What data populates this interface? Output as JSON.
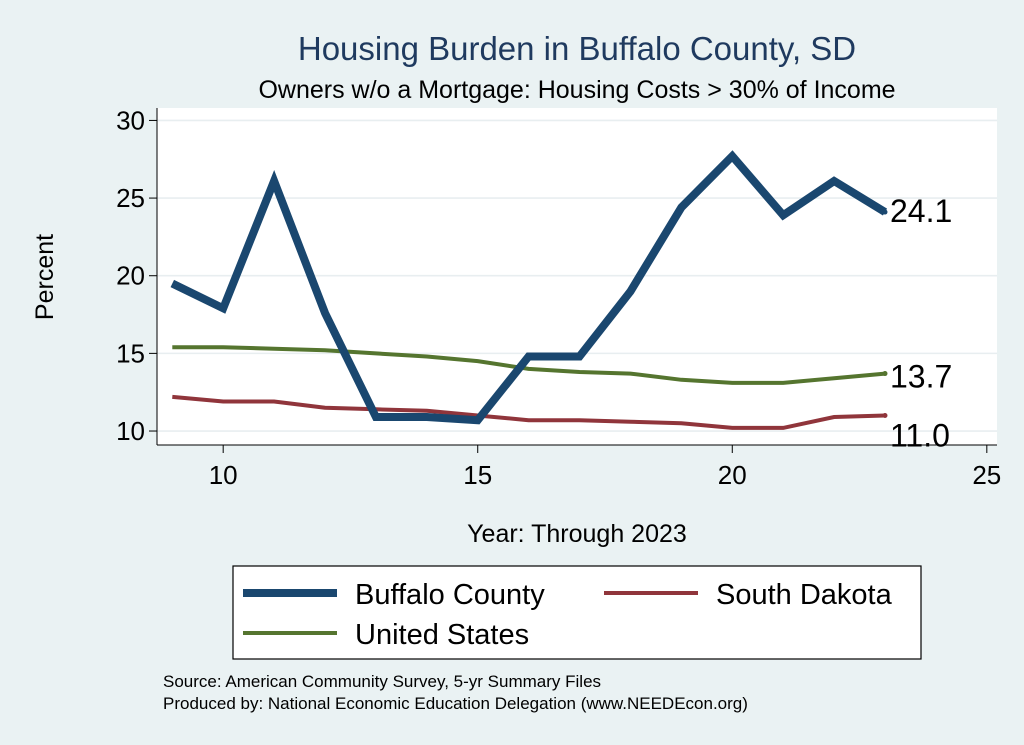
{
  "chart_data": {
    "type": "line",
    "title": "Housing Burden in Buffalo County, SD",
    "subtitle": "Owners w/o a Mortgage: Housing Costs > 30% of Income",
    "xlabel": "Year: Through 2023",
    "ylabel": "Percent",
    "xlim": [
      8.7,
      25.2
    ],
    "ylim": [
      9.1,
      30.8
    ],
    "xticks": [
      10,
      15,
      20,
      25
    ],
    "yticks": [
      10,
      15,
      20,
      25,
      30
    ],
    "grid": true,
    "legend_position": "bottom",
    "series": [
      {
        "name": "Buffalo County",
        "color": "#1a476f",
        "x": [
          9,
          10,
          11,
          12,
          13,
          14,
          15,
          16,
          17,
          18,
          19,
          20,
          21,
          22,
          23
        ],
        "values": [
          19.5,
          17.9,
          26.1,
          17.6,
          10.9,
          10.9,
          10.7,
          14.8,
          14.8,
          19.0,
          24.4,
          27.7,
          23.9,
          26.1,
          24.1
        ],
        "end_label": "24.1"
      },
      {
        "name": "South Dakota",
        "color": "#90353b",
        "x": [
          9,
          10,
          11,
          12,
          13,
          14,
          15,
          16,
          17,
          18,
          19,
          20,
          21,
          22,
          23
        ],
        "values": [
          12.2,
          11.9,
          11.9,
          11.5,
          11.4,
          11.3,
          11.0,
          10.7,
          10.7,
          10.6,
          10.5,
          10.2,
          10.2,
          10.9,
          11.0
        ],
        "end_label": "11.0"
      },
      {
        "name": "United States",
        "color": "#55752f",
        "x": [
          9,
          10,
          11,
          12,
          13,
          14,
          15,
          16,
          17,
          18,
          19,
          20,
          21,
          22,
          23
        ],
        "values": [
          15.4,
          15.4,
          15.3,
          15.2,
          15.0,
          14.8,
          14.5,
          14.0,
          13.8,
          13.7,
          13.3,
          13.1,
          13.1,
          13.4,
          13.7
        ],
        "end_label": "13.7"
      }
    ]
  },
  "source_lines": [
    "Source: American Community Survey, 5-yr Summary Files",
    "Produced by: National Economic Education Delegation (www.NEEDEcon.org)"
  ]
}
